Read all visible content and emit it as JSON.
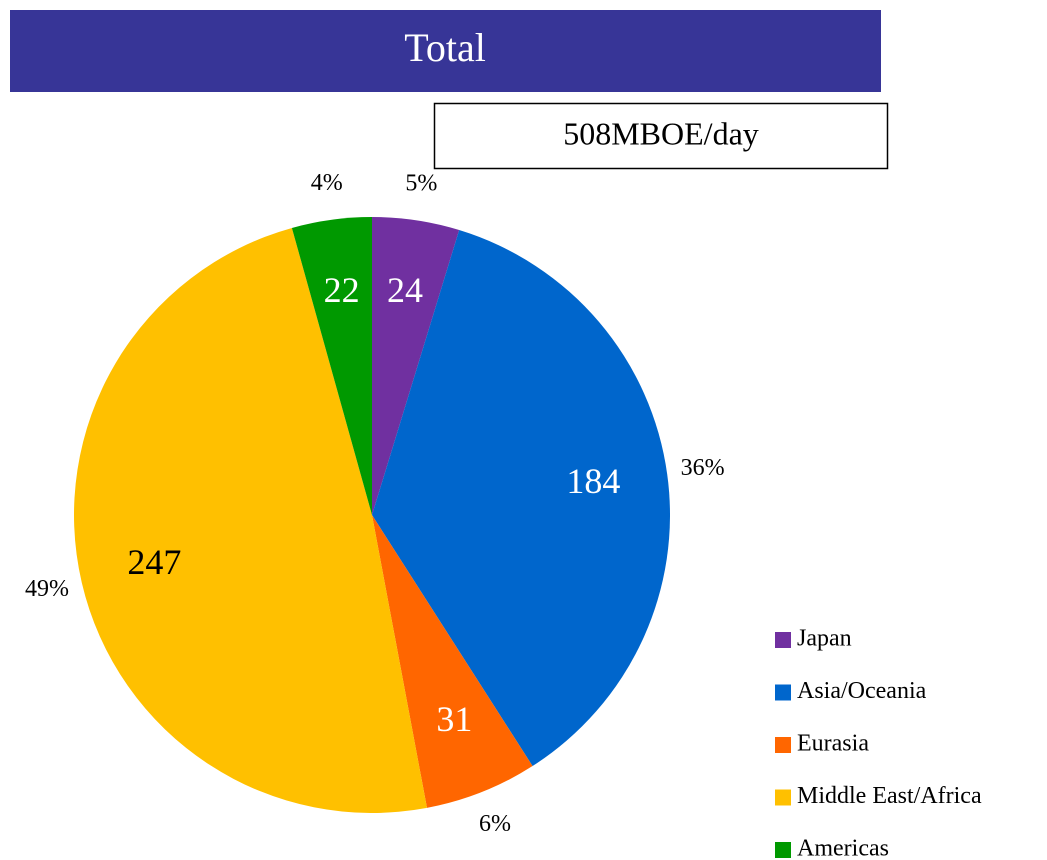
{
  "chart_data": {
    "type": "pie",
    "title": "Total",
    "subtitle": "508MBOE/day",
    "categories": [
      "Japan",
      "Asia/Oceania",
      "Eurasia",
      "Middle East/Africa",
      "Americas"
    ],
    "values": [
      24,
      184,
      31,
      247,
      22
    ],
    "percent_labels": [
      "5%",
      "36%",
      "6%",
      "49%",
      "4%"
    ],
    "colors": [
      "#7030a0",
      "#0066cc",
      "#ff6600",
      "#ffc000",
      "#009900"
    ],
    "legend": "right"
  }
}
